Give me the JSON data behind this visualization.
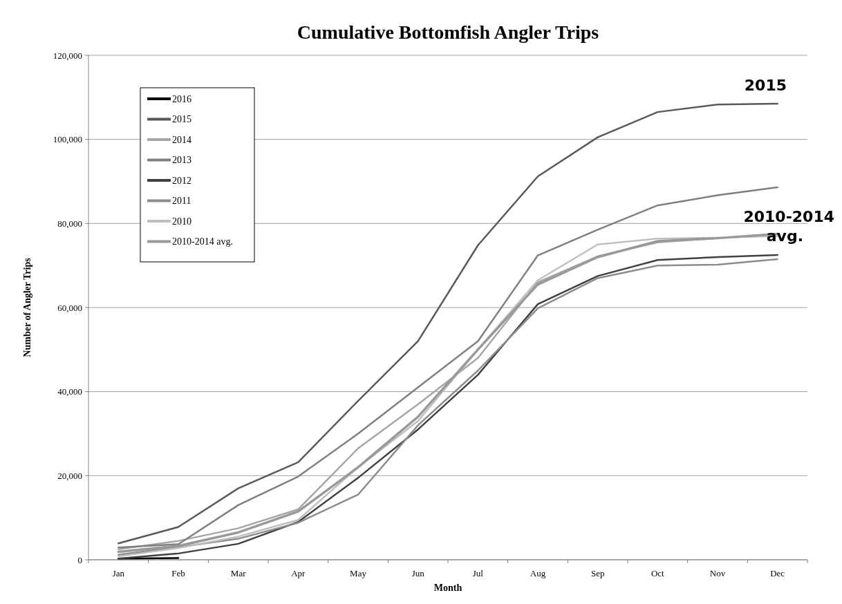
{
  "chart_data": {
    "type": "line",
    "title": "Cumulative Bottomfish Angler Trips",
    "xlabel": "Month",
    "ylabel": "Number of Angler Trips",
    "categories": [
      "Jan",
      "Feb",
      "Mar",
      "Apr",
      "May",
      "Jun",
      "Jul",
      "Aug",
      "Sep",
      "Oct",
      "Nov",
      "Dec"
    ],
    "series": [
      {
        "name": "2016",
        "color": "#000000",
        "values": [
          300,
          400,
          null,
          null,
          null,
          null,
          null,
          null,
          null,
          null,
          null,
          null
        ]
      },
      {
        "name": "2015",
        "color": "#595959",
        "values": [
          3900,
          7800,
          17000,
          23200,
          37800,
          52000,
          74800,
          91200,
          100500,
          106500,
          108300,
          108500
        ]
      },
      {
        "name": "2014",
        "color": "#a6a6a6",
        "values": [
          2500,
          4500,
          7500,
          12000,
          26500,
          37000,
          48000,
          66000,
          72200,
          75500,
          76500,
          77500
        ]
      },
      {
        "name": "2013",
        "color": "#7f7f7f",
        "values": [
          2900,
          3700,
          13000,
          19800,
          30000,
          41000,
          52000,
          72400,
          78500,
          84300,
          86700,
          88600
        ]
      },
      {
        "name": "2012",
        "color": "#404040",
        "values": [
          300,
          1500,
          3800,
          9000,
          19500,
          31000,
          44000,
          60800,
          67500,
          71300,
          72000,
          72500
        ]
      },
      {
        "name": "2011",
        "color": "#8c8c8c",
        "values": [
          1200,
          3000,
          5000,
          8800,
          15500,
          32000,
          45000,
          59800,
          67000,
          70000,
          70200,
          71500
        ]
      },
      {
        "name": "2010",
        "color": "#bfbfbf",
        "values": [
          800,
          2800,
          5500,
          9500,
          22000,
          33000,
          50000,
          66500,
          75000,
          76400,
          76600,
          77000
        ]
      },
      {
        "name": "2010-2014 avg.",
        "color": "#999999",
        "values": [
          1900,
          3300,
          6500,
          11500,
          22000,
          34000,
          50000,
          65500,
          72000,
          75800,
          76500,
          77500
        ]
      }
    ],
    "ylim": [
      0,
      120000
    ],
    "yticks": [
      0,
      {
        "value": 20000,
        "label": "20,000"
      },
      {
        "value": 40000,
        "label": "40,000"
      },
      {
        "value": 60000,
        "label": "60,000"
      },
      {
        "value": 80000,
        "label": "80,000"
      },
      {
        "value": 100000,
        "label": "100,000"
      },
      {
        "value": 120000,
        "label": "120,000"
      }
    ],
    "grid": "y",
    "legend": "top left",
    "marker": "none",
    "line_style": "solid",
    "annotations": [
      "2015",
      "2010-2014 avg."
    ]
  }
}
